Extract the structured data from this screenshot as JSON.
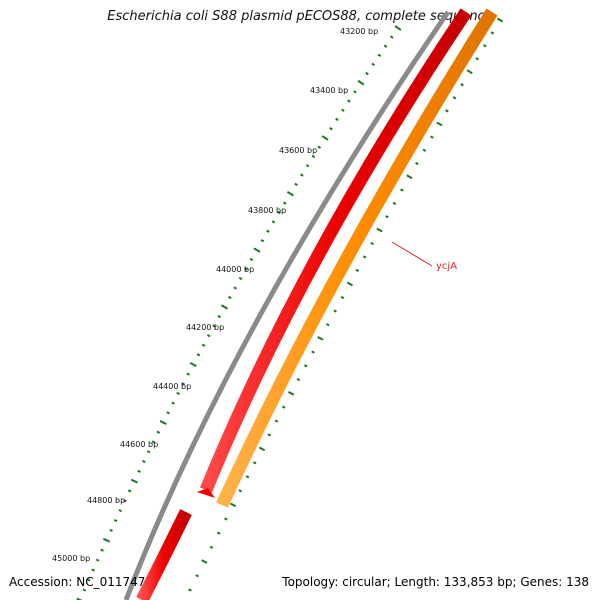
{
  "map": {
    "title": "Escherichia coli S88 plasmid pECOS88, complete sequence",
    "accession": "Accession: NC_011747",
    "summary": "Topology: circular; Length: 133,853 bp; Genes: 138",
    "ticks": [
      {
        "label": "43200 bp"
      },
      {
        "label": "43400 bp"
      },
      {
        "label": "43600 bp"
      },
      {
        "label": "43800 bp"
      },
      {
        "label": "44000 bp"
      },
      {
        "label": "44200 bp"
      },
      {
        "label": "44400 bp"
      },
      {
        "label": "44600 bp"
      },
      {
        "label": "44800 bp"
      },
      {
        "label": "45000 bp"
      }
    ],
    "genes": [
      {
        "name": "ycjA",
        "strand": "reverse",
        "color": "#ff8c00"
      }
    ],
    "colors": {
      "backbone": "#8a8a8a",
      "forward_feature": "#ee0000",
      "reverse_feature": "#ff8c00",
      "tick": "#1a7a1a",
      "label": "#dd2222"
    }
  }
}
